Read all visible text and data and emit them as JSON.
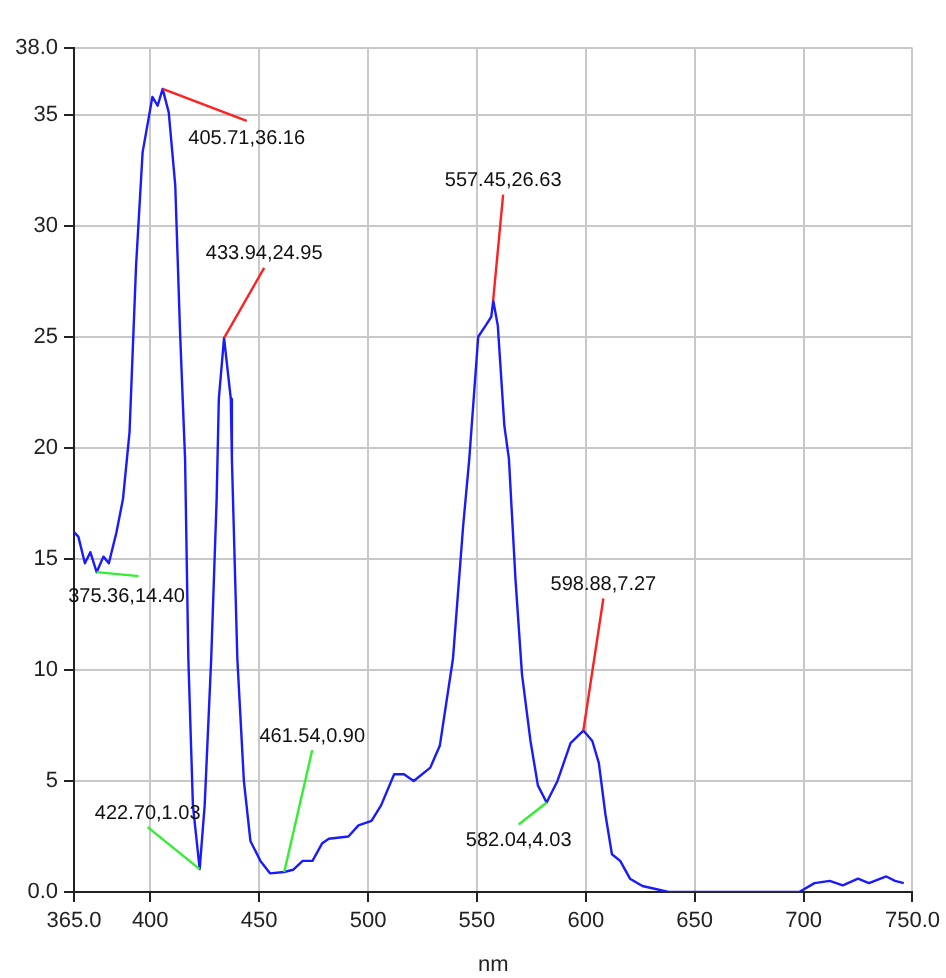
{
  "chart_data": {
    "type": "line",
    "xlabel": "nm",
    "grid": true,
    "marker": "none",
    "line_style": "solid",
    "xlim": [
      365,
      750
    ],
    "ylim": [
      0,
      38
    ],
    "xticks": [
      {
        "value": 365,
        "label": "365.0"
      },
      400,
      450,
      500,
      550,
      600,
      650,
      700,
      {
        "value": 750,
        "label": "750.0"
      }
    ],
    "yticks": [
      {
        "value": 0,
        "label": "0.0"
      },
      5,
      10,
      15,
      20,
      25,
      30,
      35,
      {
        "value": 38,
        "label": "38.0"
      }
    ],
    "series": [
      {
        "color": "#1a1aff",
        "x": [
          365,
          367,
          370,
          372.5,
          375.4,
          378.5,
          381,
          384.5,
          387.5,
          390.5,
          393.5,
          396.5,
          401,
          403.4,
          405.7,
          408.5,
          411.5,
          413.7,
          416,
          417.5,
          419.6,
          422.7,
          425,
          428,
          430.5,
          431.5,
          433.9,
          437,
          437.5,
          440,
          443,
          446,
          450.6,
          455,
          461.5,
          465.6,
          470,
          474.5,
          479,
          482,
          491,
          495.6,
          501.6,
          506,
          512,
          516.5,
          521,
          528.6,
          533,
          539,
          543.7,
          546.5,
          550.6,
          554,
          556.6,
          557.5,
          559.6,
          562.6,
          564.7,
          567.7,
          570.7,
          574.6,
          578,
          582,
          587,
          593,
          598.9,
          603,
          606,
          609,
          612,
          615.8,
          620.3,
          626,
          638,
          698,
          705,
          712,
          718,
          725,
          730,
          738,
          742,
          746
        ],
        "values": [
          16.2,
          16.0,
          14.8,
          15.3,
          14.4,
          15.1,
          14.8,
          16.2,
          17.7,
          20.7,
          28.2,
          33.3,
          35.8,
          35.4,
          36.16,
          35.1,
          31.8,
          25.2,
          19.5,
          10.5,
          3.9,
          1.03,
          3.9,
          10.5,
          17.7,
          22.2,
          24.95,
          22.2,
          19.5,
          10.5,
          5.0,
          2.3,
          1.4,
          0.84,
          0.9,
          1.0,
          1.4,
          1.4,
          2.2,
          2.4,
          2.5,
          3.0,
          3.2,
          3.9,
          5.3,
          5.3,
          5.0,
          5.6,
          6.6,
          10.5,
          16.5,
          19.5,
          25.0,
          25.5,
          25.9,
          26.63,
          25.5,
          21.0,
          19.5,
          14.1,
          9.8,
          6.8,
          4.8,
          4.03,
          5.0,
          6.7,
          7.27,
          6.8,
          5.8,
          3.5,
          1.7,
          1.4,
          0.6,
          0.27,
          0,
          0,
          0.4,
          0.5,
          0.3,
          0.6,
          0.4,
          0.7,
          0.5,
          0.4
        ]
      }
    ],
    "annotations": [
      {
        "text": "405.71,36.16",
        "x": 405.71,
        "y": 36.16
      },
      {
        "text": "433.94,24.95",
        "x": 433.94,
        "y": 24.95
      },
      {
        "text": "557.45,26.63",
        "x": 557.45,
        "y": 26.63
      },
      {
        "text": "598.88,7.27",
        "x": 598.88,
        "y": 7.27
      },
      {
        "text": "375.36,14.40",
        "x": 375.36,
        "y": 14.4
      },
      {
        "text": "422.70,1.03",
        "x": 422.7,
        "y": 1.03
      },
      {
        "text": "461.54,0.90",
        "x": 461.54,
        "y": 0.9
      },
      {
        "text": "582.04,4.03",
        "x": 582.04,
        "y": 4.03
      }
    ]
  }
}
